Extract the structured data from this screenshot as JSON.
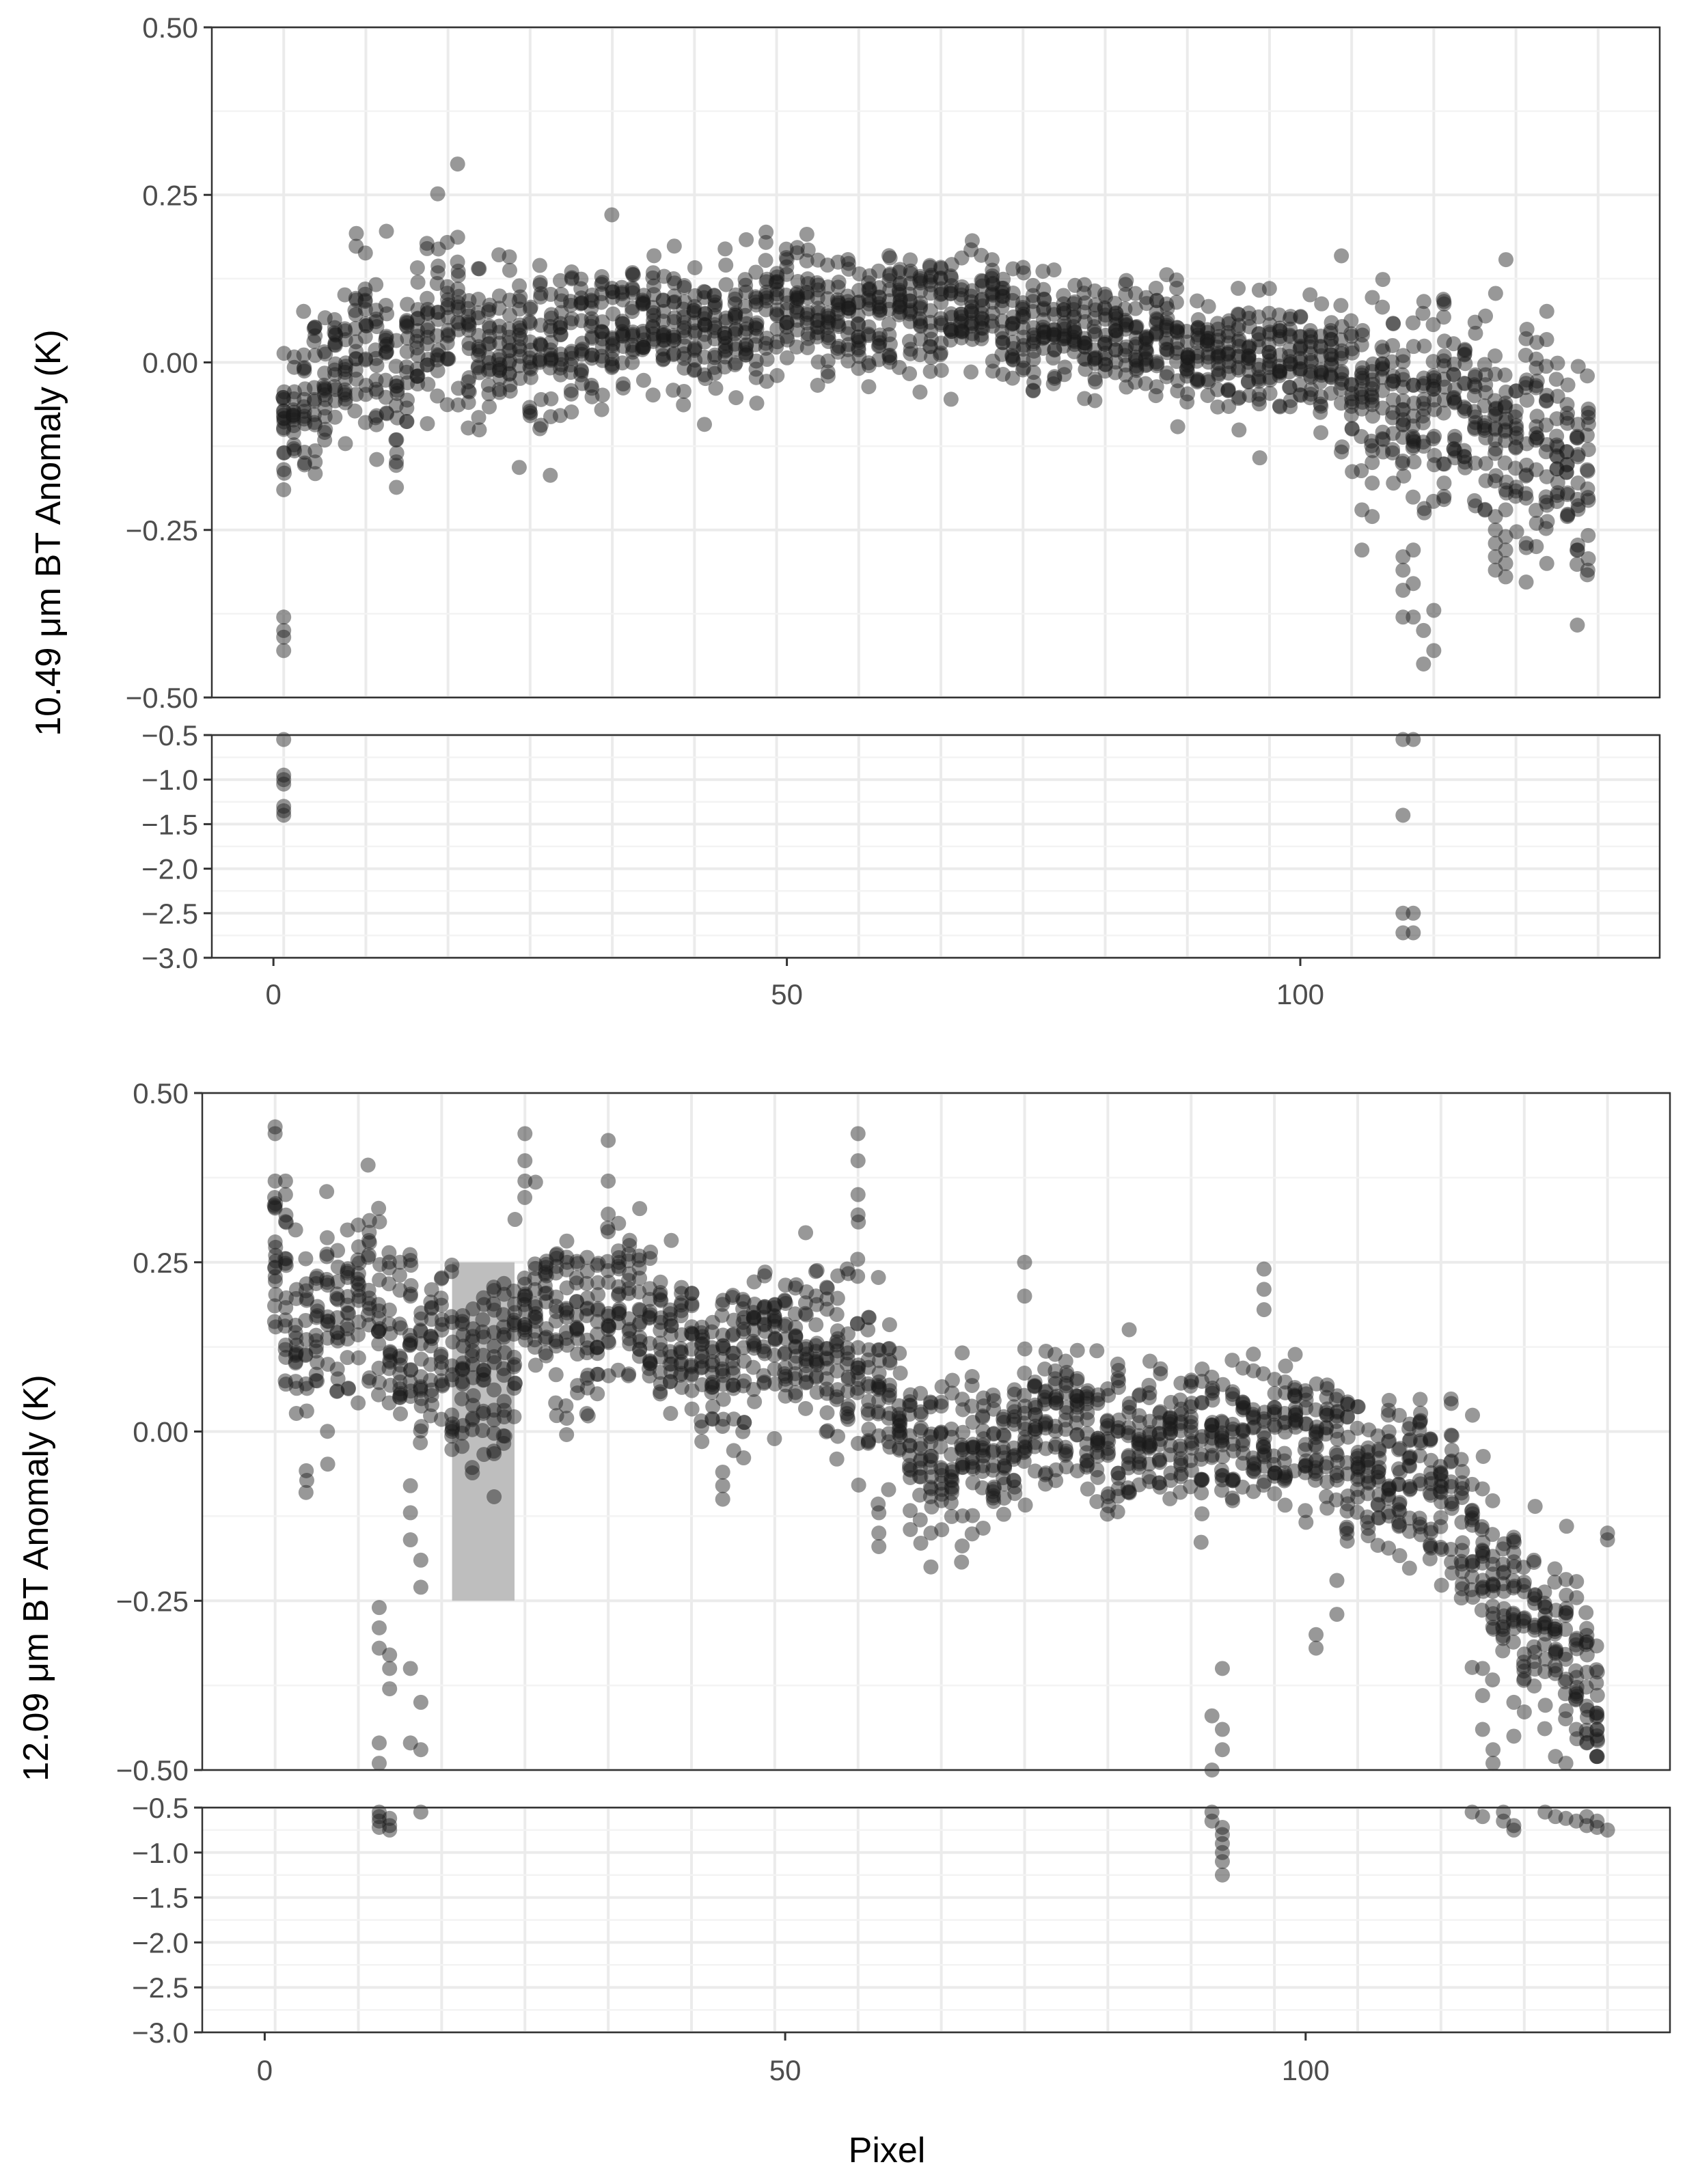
{
  "colors": {
    "point": "#1a1a1a",
    "grid_major": "#ebebeb",
    "grid_minor": "#f3f3f3",
    "panel_border": "#333333",
    "highlight": "#bebebe"
  },
  "chart_data": [
    {
      "type": "scatter",
      "ylabel": "10.49 μm BT Anomaly (K)",
      "xlabel": "Pixel",
      "x_ticks": [
        0,
        50,
        100
      ],
      "xlim": [
        -6,
        135
      ],
      "upper_panel": {
        "ylim": [
          -0.5,
          0.5
        ],
        "yticks": [
          "0.50",
          "0.25",
          "0.00",
          "−0.25",
          "−0.50"
        ]
      },
      "lower_panel": {
        "ylim": [
          -3.0,
          -0.5
        ],
        "yticks": [
          "−0.5",
          "−1.0",
          "−1.5",
          "−2.0",
          "−2.5",
          "−3.0"
        ]
      },
      "grid": true,
      "trend": [
        [
          1,
          -0.07
        ],
        [
          3,
          -0.05
        ],
        [
          6,
          -0.02
        ],
        [
          9,
          0.03
        ],
        [
          11,
          0.02
        ],
        [
          12,
          -0.07
        ],
        [
          14,
          0.04
        ],
        [
          17,
          0.07
        ],
        [
          20,
          0.04
        ],
        [
          24,
          0.04
        ],
        [
          27,
          0.02
        ],
        [
          30,
          0.03
        ],
        [
          34,
          0.05
        ],
        [
          38,
          0.05
        ],
        [
          42,
          0.05
        ],
        [
          46,
          0.05
        ],
        [
          50,
          0.07
        ],
        [
          55,
          0.07
        ],
        [
          60,
          0.07
        ],
        [
          65,
          0.08
        ],
        [
          70,
          0.07
        ],
        [
          75,
          0.05
        ],
        [
          80,
          0.04
        ],
        [
          85,
          0.03
        ],
        [
          90,
          0.02
        ],
        [
          95,
          0.01
        ],
        [
          100,
          0.0
        ],
        [
          104,
          -0.01
        ],
        [
          107,
          -0.04
        ],
        [
          110,
          -0.07
        ],
        [
          114,
          -0.02
        ],
        [
          118,
          -0.07
        ],
        [
          122,
          -0.1
        ],
        [
          126,
          -0.14
        ],
        [
          128,
          -0.17
        ]
      ],
      "spread": [
        [
          1,
          0.06
        ],
        [
          10,
          0.07
        ],
        [
          20,
          0.06
        ],
        [
          40,
          0.05
        ],
        [
          60,
          0.05
        ],
        [
          80,
          0.04
        ],
        [
          100,
          0.04
        ],
        [
          110,
          0.07
        ],
        [
          120,
          0.07
        ],
        [
          128,
          0.08
        ]
      ],
      "outliers": [
        {
          "x": 1,
          "y": -0.38
        },
        {
          "x": 1,
          "y": -0.4
        },
        {
          "x": 1,
          "y": -0.41
        },
        {
          "x": 1,
          "y": -0.43
        },
        {
          "x": 1,
          "y": -0.19
        },
        {
          "x": 1,
          "y": -0.16
        },
        {
          "x": 1,
          "y": -0.1
        },
        {
          "x": 106,
          "y": -0.22
        },
        {
          "x": 106,
          "y": -0.28
        },
        {
          "x": 107,
          "y": -0.18
        },
        {
          "x": 107,
          "y": -0.23
        },
        {
          "x": 110,
          "y": -0.29
        },
        {
          "x": 110,
          "y": -0.31
        },
        {
          "x": 110,
          "y": -0.34
        },
        {
          "x": 110,
          "y": -0.38
        },
        {
          "x": 111,
          "y": -0.28
        },
        {
          "x": 111,
          "y": -0.33
        },
        {
          "x": 111,
          "y": -0.38
        },
        {
          "x": 112,
          "y": -0.4
        },
        {
          "x": 112,
          "y": -0.45
        },
        {
          "x": 113,
          "y": -0.37
        },
        {
          "x": 113,
          "y": -0.43
        },
        {
          "x": 114,
          "y": -0.2
        },
        {
          "x": 114,
          "y": -0.18
        },
        {
          "x": 119,
          "y": -0.23
        },
        {
          "x": 119,
          "y": -0.25
        },
        {
          "x": 119,
          "y": -0.27
        },
        {
          "x": 119,
          "y": -0.29
        },
        {
          "x": 119,
          "y": -0.31
        },
        {
          "x": 120,
          "y": -0.22
        },
        {
          "x": 120,
          "y": -0.26
        },
        {
          "x": 120,
          "y": -0.28
        },
        {
          "x": 120,
          "y": -0.3
        },
        {
          "x": 120,
          "y": -0.32
        },
        {
          "x": 122,
          "y": -0.27
        },
        {
          "x": 123,
          "y": -0.24
        },
        {
          "x": 124,
          "y": -0.3
        },
        {
          "x": 126,
          "y": -0.23
        },
        {
          "x": 127,
          "y": -0.28
        },
        {
          "x": 128,
          "y": -0.31
        },
        {
          "x": 1,
          "y": -0.55
        },
        {
          "x": 1,
          "y": -0.95
        },
        {
          "x": 1,
          "y": -1.0
        },
        {
          "x": 1,
          "y": -1.05
        },
        {
          "x": 1,
          "y": -1.3
        },
        {
          "x": 1,
          "y": -1.35
        },
        {
          "x": 1,
          "y": -1.4
        },
        {
          "x": 110,
          "y": -0.55
        },
        {
          "x": 111,
          "y": -0.55
        },
        {
          "x": 110,
          "y": -1.4
        },
        {
          "x": 110,
          "y": -2.5
        },
        {
          "x": 111,
          "y": -2.5
        },
        {
          "x": 110,
          "y": -2.72
        },
        {
          "x": 111,
          "y": -2.72
        }
      ]
    },
    {
      "type": "scatter",
      "ylabel": "12.09 μm BT Anomaly (K)",
      "xlabel": "Pixel",
      "x_ticks": [
        0,
        50,
        100
      ],
      "xlim": [
        -6,
        135
      ],
      "upper_panel": {
        "ylim": [
          -0.5,
          0.5
        ],
        "yticks": [
          "0.50",
          "0.25",
          "0.00",
          "−0.25",
          "−0.50"
        ]
      },
      "lower_panel": {
        "ylim": [
          -3.0,
          -0.5
        ],
        "yticks": [
          "−0.5",
          "−1.0",
          "−1.5",
          "−2.0",
          "−2.5",
          "−3.0"
        ]
      },
      "grid": true,
      "highlight_region": {
        "x": [
          18,
          24
        ],
        "y": [
          -0.25,
          0.25
        ]
      },
      "trend": [
        [
          1,
          0.25
        ],
        [
          3,
          0.12
        ],
        [
          5,
          0.1
        ],
        [
          8,
          0.2
        ],
        [
          10,
          0.22
        ],
        [
          12,
          0.14
        ],
        [
          14,
          0.1
        ],
        [
          16,
          0.14
        ],
        [
          18,
          0.1
        ],
        [
          21,
          0.07
        ],
        [
          24,
          0.12
        ],
        [
          26,
          0.2
        ],
        [
          30,
          0.15
        ],
        [
          34,
          0.2
        ],
        [
          38,
          0.14
        ],
        [
          42,
          0.1
        ],
        [
          46,
          0.12
        ],
        [
          50,
          0.14
        ],
        [
          54,
          0.12
        ],
        [
          57,
          0.08
        ],
        [
          60,
          0.04
        ],
        [
          63,
          -0.05
        ],
        [
          66,
          -0.02
        ],
        [
          70,
          -0.04
        ],
        [
          74,
          0.03
        ],
        [
          78,
          0.02
        ],
        [
          82,
          -0.02
        ],
        [
          86,
          0.0
        ],
        [
          90,
          -0.01
        ],
        [
          94,
          0.0
        ],
        [
          98,
          -0.01
        ],
        [
          102,
          0.0
        ],
        [
          106,
          -0.08
        ],
        [
          110,
          -0.06
        ],
        [
          114,
          -0.1
        ],
        [
          118,
          -0.22
        ],
        [
          122,
          -0.27
        ],
        [
          126,
          -0.35
        ],
        [
          128,
          -0.4
        ]
      ],
      "spread": [
        [
          1,
          0.08
        ],
        [
          20,
          0.07
        ],
        [
          40,
          0.06
        ],
        [
          60,
          0.06
        ],
        [
          80,
          0.05
        ],
        [
          100,
          0.05
        ],
        [
          110,
          0.06
        ],
        [
          120,
          0.07
        ],
        [
          128,
          0.07
        ]
      ],
      "outliers": [
        {
          "x": 1,
          "y": 0.45
        },
        {
          "x": 1,
          "y": 0.44
        },
        {
          "x": 1,
          "y": 0.37
        },
        {
          "x": 1,
          "y": 0.33
        },
        {
          "x": 2,
          "y": 0.37
        },
        {
          "x": 2,
          "y": 0.35
        },
        {
          "x": 2,
          "y": 0.31
        },
        {
          "x": 1,
          "y": 0.28
        },
        {
          "x": 11,
          "y": -0.26
        },
        {
          "x": 11,
          "y": -0.29
        },
        {
          "x": 11,
          "y": -0.32
        },
        {
          "x": 12,
          "y": -0.35
        },
        {
          "x": 12,
          "y": -0.38
        },
        {
          "x": 11,
          "y": -0.46
        },
        {
          "x": 11,
          "y": -0.49
        },
        {
          "x": 12,
          "y": -0.33
        },
        {
          "x": 14,
          "y": -0.08
        },
        {
          "x": 14,
          "y": -0.12
        },
        {
          "x": 14,
          "y": -0.16
        },
        {
          "x": 15,
          "y": -0.19
        },
        {
          "x": 15,
          "y": -0.23
        },
        {
          "x": 14,
          "y": -0.35
        },
        {
          "x": 15,
          "y": -0.4
        },
        {
          "x": 14,
          "y": -0.46
        },
        {
          "x": 15,
          "y": -0.47
        },
        {
          "x": 13,
          "y": 0.25
        },
        {
          "x": 14,
          "y": 0.2
        },
        {
          "x": 25,
          "y": 0.44
        },
        {
          "x": 25,
          "y": 0.4
        },
        {
          "x": 25,
          "y": 0.37
        },
        {
          "x": 33,
          "y": 0.43
        },
        {
          "x": 33,
          "y": 0.37
        },
        {
          "x": 57,
          "y": 0.44
        },
        {
          "x": 57,
          "y": 0.4
        },
        {
          "x": 57,
          "y": 0.35
        },
        {
          "x": 57,
          "y": 0.32
        },
        {
          "x": 44,
          "y": -0.06
        },
        {
          "x": 44,
          "y": -0.08
        },
        {
          "x": 44,
          "y": -0.1
        },
        {
          "x": 59,
          "y": -0.12
        },
        {
          "x": 59,
          "y": -0.15
        },
        {
          "x": 59,
          "y": -0.17
        },
        {
          "x": 64,
          "y": -0.15
        },
        {
          "x": 64,
          "y": -0.2
        },
        {
          "x": 73,
          "y": 0.25
        },
        {
          "x": 73,
          "y": 0.2
        },
        {
          "x": 96,
          "y": 0.24
        },
        {
          "x": 96,
          "y": 0.21
        },
        {
          "x": 96,
          "y": 0.18
        },
        {
          "x": 92,
          "y": -0.35
        },
        {
          "x": 91,
          "y": -0.42
        },
        {
          "x": 92,
          "y": -0.44
        },
        {
          "x": 92,
          "y": -0.47
        },
        {
          "x": 91,
          "y": -0.5
        },
        {
          "x": 101,
          "y": -0.3
        },
        {
          "x": 101,
          "y": -0.32
        },
        {
          "x": 103,
          "y": -0.22
        },
        {
          "x": 103,
          "y": -0.27
        },
        {
          "x": 117,
          "y": -0.44
        },
        {
          "x": 117,
          "y": -0.39
        },
        {
          "x": 117,
          "y": -0.35
        },
        {
          "x": 118,
          "y": -0.47
        },
        {
          "x": 118,
          "y": -0.49
        },
        {
          "x": 120,
          "y": -0.4
        },
        {
          "x": 120,
          "y": -0.45
        },
        {
          "x": 124,
          "y": -0.48
        },
        {
          "x": 125,
          "y": -0.49
        },
        {
          "x": 126,
          "y": -0.44
        },
        {
          "x": 127,
          "y": -0.46
        },
        {
          "x": 128,
          "y": -0.44
        },
        {
          "x": 128,
          "y": -0.42
        },
        {
          "x": 129,
          "y": -0.15
        },
        {
          "x": 129,
          "y": -0.16
        },
        {
          "x": 11,
          "y": -0.55
        },
        {
          "x": 11,
          "y": -0.6
        },
        {
          "x": 11,
          "y": -0.65
        },
        {
          "x": 12,
          "y": -0.62
        },
        {
          "x": 12,
          "y": -0.7
        },
        {
          "x": 11,
          "y": -0.72
        },
        {
          "x": 12,
          "y": -0.75
        },
        {
          "x": 15,
          "y": -0.55
        },
        {
          "x": 91,
          "y": -0.55
        },
        {
          "x": 91,
          "y": -0.65
        },
        {
          "x": 92,
          "y": -0.72
        },
        {
          "x": 92,
          "y": -0.8
        },
        {
          "x": 92,
          "y": -0.9
        },
        {
          "x": 92,
          "y": -1.0
        },
        {
          "x": 92,
          "y": -1.1
        },
        {
          "x": 92,
          "y": -1.25
        },
        {
          "x": 116,
          "y": -0.55
        },
        {
          "x": 117,
          "y": -0.6
        },
        {
          "x": 119,
          "y": -0.55
        },
        {
          "x": 119,
          "y": -0.65
        },
        {
          "x": 120,
          "y": -0.7
        },
        {
          "x": 120,
          "y": -0.75
        },
        {
          "x": 123,
          "y": -0.55
        },
        {
          "x": 124,
          "y": -0.6
        },
        {
          "x": 125,
          "y": -0.62
        },
        {
          "x": 126,
          "y": -0.65
        },
        {
          "x": 127,
          "y": -0.6
        },
        {
          "x": 127,
          "y": -0.7
        },
        {
          "x": 128,
          "y": -0.72
        },
        {
          "x": 129,
          "y": -0.75
        },
        {
          "x": 128,
          "y": -0.65
        }
      ]
    }
  ]
}
